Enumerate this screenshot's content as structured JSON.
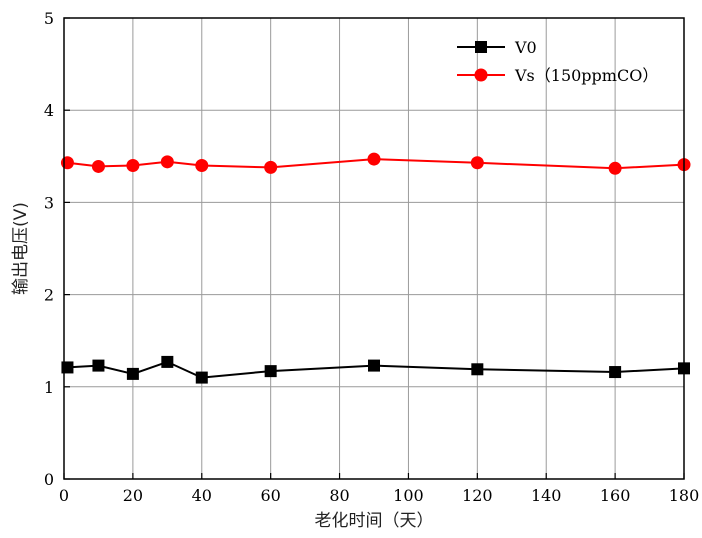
{
  "chart_data": {
    "type": "line",
    "title": "",
    "xlabel": "老化时间（天）",
    "ylabel": "输出电压(V)",
    "xlim": [
      0,
      180
    ],
    "ylim": [
      0,
      5
    ],
    "xticks": [
      0,
      20,
      40,
      60,
      80,
      100,
      120,
      140,
      160,
      180
    ],
    "yticks": [
      0,
      1,
      2,
      3,
      4,
      5
    ],
    "grid": true,
    "legend_position": "top-right",
    "series": [
      {
        "name": "V0",
        "color": "#000000",
        "marker": "square",
        "x": [
          1,
          10,
          20,
          30,
          40,
          60,
          90,
          120,
          160,
          180
        ],
        "y": [
          1.21,
          1.23,
          1.14,
          1.27,
          1.1,
          1.17,
          1.23,
          1.19,
          1.16,
          1.2
        ]
      },
      {
        "name": "Vs（150ppmCO）",
        "color": "#ff0000",
        "marker": "circle",
        "x": [
          1,
          10,
          20,
          30,
          40,
          60,
          90,
          120,
          160,
          180
        ],
        "y": [
          3.43,
          3.39,
          3.4,
          3.44,
          3.4,
          3.38,
          3.47,
          3.43,
          3.37,
          3.41
        ]
      }
    ]
  }
}
